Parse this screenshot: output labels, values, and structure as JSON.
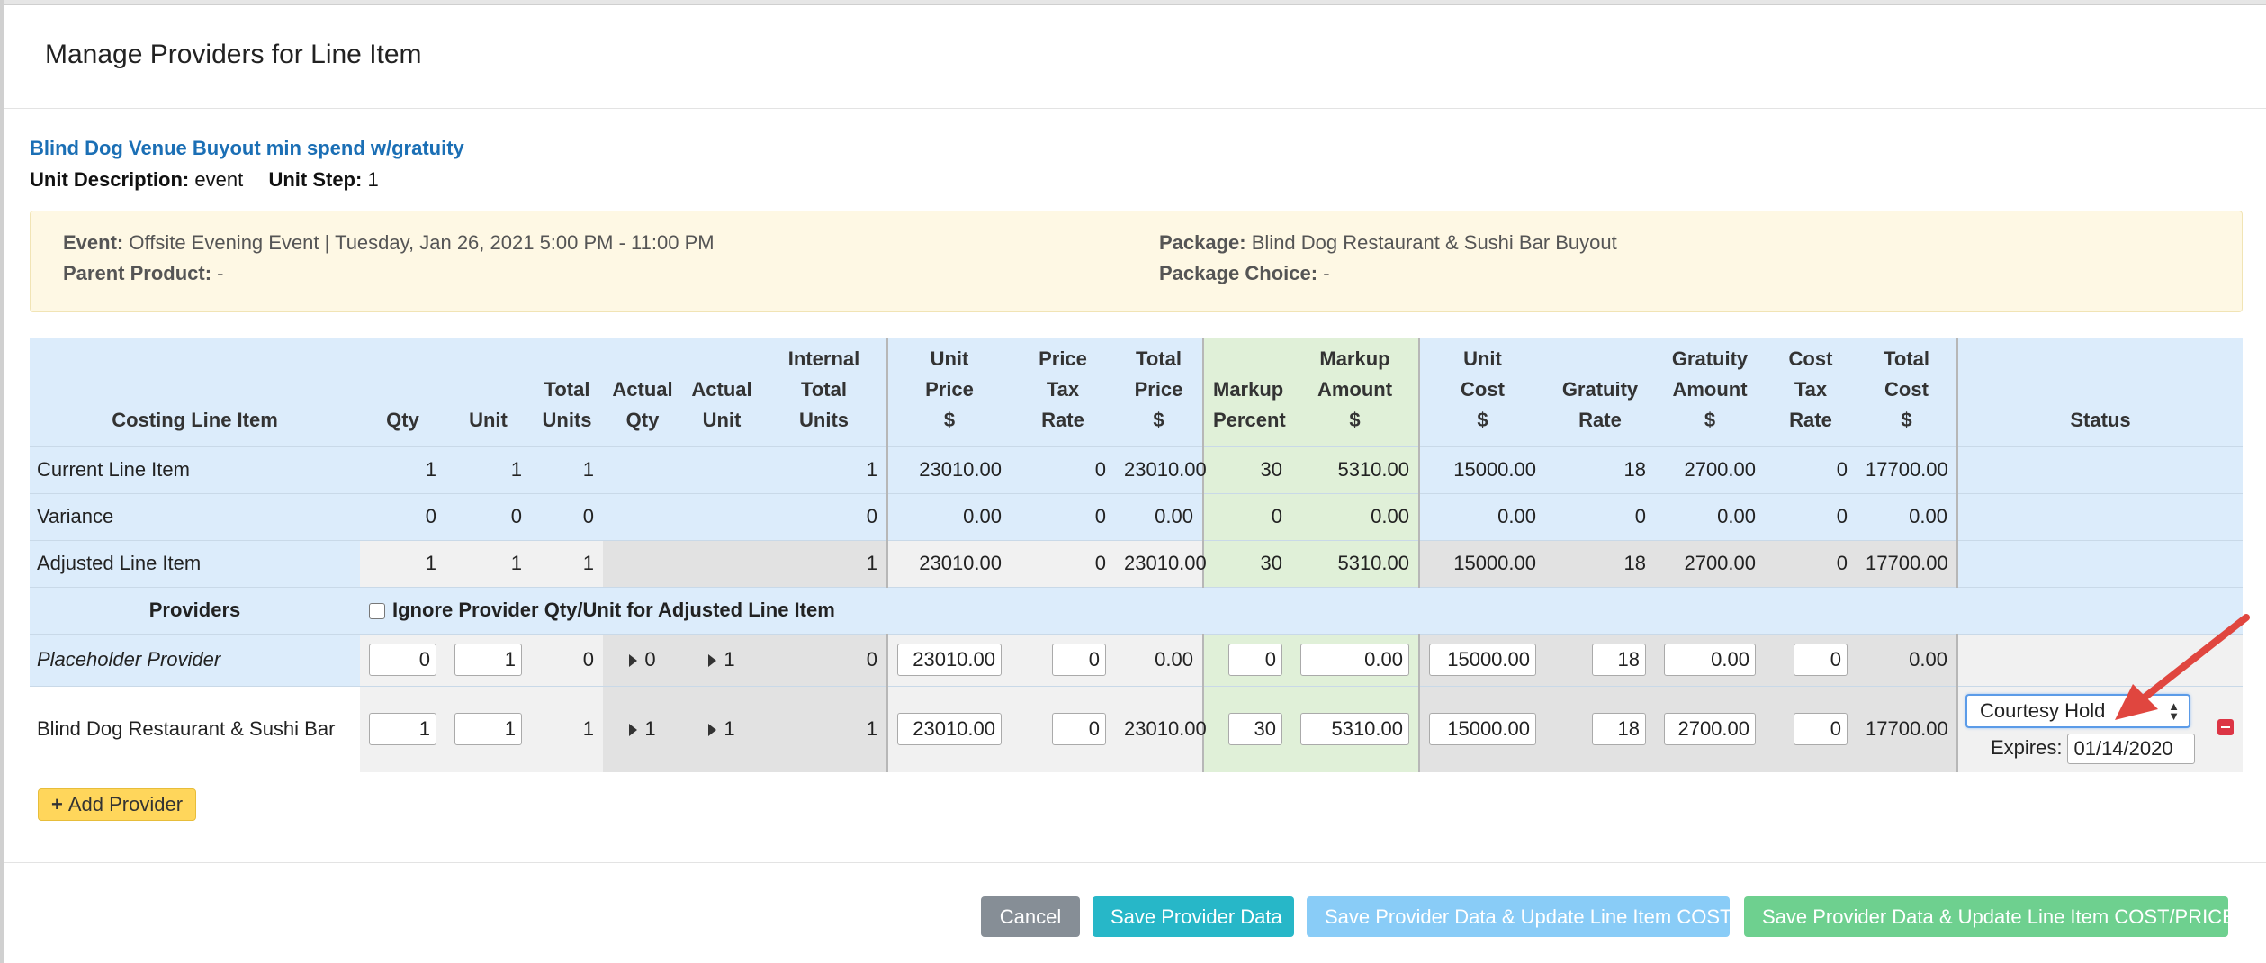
{
  "modal": {
    "title": "Manage Providers for Line Item"
  },
  "product": {
    "name": "Blind Dog Venue Buyout min spend w/gratuity",
    "unit_description_label": "Unit Description:",
    "unit_description": "event",
    "unit_step_label": "Unit Step:",
    "unit_step": "1"
  },
  "event_info": {
    "event_label": "Event:",
    "event": "Offsite Evening Event | Tuesday, Jan 26, 2021 5:00 PM - 11:00 PM",
    "parent_label": "Parent Product:",
    "parent": "-",
    "package_label": "Package:",
    "package": "Blind Dog Restaurant & Sushi Bar Buyout",
    "package_choice_label": "Package Choice:",
    "package_choice": "-"
  },
  "table": {
    "headers": {
      "costing_line_item": "Costing Line Item",
      "qty": "Qty",
      "unit": "Unit",
      "total_units_1": "Total",
      "total_units_2": "Units",
      "actual_qty_1": "Actual",
      "actual_qty_2": "Qty",
      "actual_unit_1": "Actual",
      "actual_unit_2": "Unit",
      "internal_1": "Internal",
      "internal_2": "Total",
      "internal_3": "Units",
      "unit_price_1": "Unit",
      "unit_price_2": "Price",
      "unit_price_3": "$",
      "price_tax_1": "Price Tax",
      "price_tax_2": "Rate",
      "total_price_1": "Total",
      "total_price_2": "Price",
      "total_price_3": "$",
      "markup_pct_1": "Markup",
      "markup_pct_2": "Percent",
      "markup_amt_1": "Markup",
      "markup_amt_2": "Amount",
      "markup_amt_3": "$",
      "unit_cost_1": "Unit",
      "unit_cost_2": "Cost",
      "unit_cost_3": "$",
      "gratuity_rate_1": "Gratuity",
      "gratuity_rate_2": "Rate",
      "gratuity_amt_1": "Gratuity",
      "gratuity_amt_2": "Amount",
      "gratuity_amt_3": "$",
      "cost_tax_1": "Cost Tax",
      "cost_tax_2": "Rate",
      "total_cost_1": "Total",
      "total_cost_2": "Cost",
      "total_cost_3": "$",
      "status": "Status"
    },
    "current": {
      "name": "Current Line Item",
      "qty": "1",
      "unit": "1",
      "total_units": "1",
      "internal": "1",
      "unit_price": "23010.00",
      "price_tax": "0",
      "total_price": "23010.00",
      "markup_pct": "30",
      "markup_amt": "5310.00",
      "unit_cost": "15000.00",
      "gratuity_rate": "18",
      "gratuity_amt": "2700.00",
      "cost_tax": "0",
      "total_cost": "17700.00"
    },
    "variance": {
      "name": "Variance",
      "qty": "0",
      "unit": "0",
      "total_units": "0",
      "internal": "0",
      "unit_price": "0.00",
      "price_tax": "0",
      "total_price": "0.00",
      "markup_pct": "0",
      "markup_amt": "0.00",
      "unit_cost": "0.00",
      "gratuity_rate": "0",
      "gratuity_amt": "0.00",
      "cost_tax": "0",
      "total_cost": "0.00"
    },
    "adjusted": {
      "name": "Adjusted Line Item",
      "qty": "1",
      "unit": "1",
      "total_units": "1",
      "internal": "1",
      "unit_price": "23010.00",
      "price_tax": "0",
      "total_price": "23010.00",
      "markup_pct": "30",
      "markup_amt": "5310.00",
      "unit_cost": "15000.00",
      "gratuity_rate": "18",
      "gratuity_amt": "2700.00",
      "cost_tax": "0",
      "total_cost": "17700.00"
    },
    "providers_label": "Providers",
    "ignore_label": "Ignore Provider Qty/Unit for Adjusted Line Item",
    "placeholder": {
      "name": "Placeholder Provider",
      "qty": "0",
      "unit": "1",
      "total_units": "0",
      "actual_qty": "0",
      "actual_unit": "1",
      "internal": "0",
      "unit_price": "23010.00",
      "price_tax": "0",
      "total_price": "0.00",
      "markup_pct": "0",
      "markup_amt": "0.00",
      "unit_cost": "15000.00",
      "gratuity_rate": "18",
      "gratuity_amt": "0.00",
      "cost_tax": "0",
      "total_cost": "0.00"
    },
    "blinddog": {
      "name": "Blind Dog Restaurant & Sushi Bar",
      "qty": "1",
      "unit": "1",
      "total_units": "1",
      "actual_qty": "1",
      "actual_unit": "1",
      "internal": "1",
      "unit_price": "23010.00",
      "price_tax": "0",
      "total_price": "23010.00",
      "markup_pct": "30",
      "markup_amt": "5310.00",
      "unit_cost": "15000.00",
      "gratuity_rate": "18",
      "gratuity_amt": "2700.00",
      "cost_tax": "0",
      "total_cost": "17700.00",
      "status": "Courtesy Hold",
      "expires_label": "Expires:",
      "expires": "01/14/2020"
    }
  },
  "add_provider_label": "Add Provider",
  "buttons": {
    "cancel": "Cancel",
    "save": "Save Provider Data",
    "save_cost": "Save Provider Data & Update Line Item COST",
    "save_cost_price": "Save Provider Data & Update Line Item COST/PRICE"
  },
  "colors": {
    "link_blue": "#1b6fb5",
    "table_blue": "#dcecfb",
    "markup_green": "#e0f0d8",
    "add_yellow": "#ffd65b",
    "save_teal": "#27b7c8",
    "cost_lightblue": "#89ccf7",
    "costprice_green": "#6ed08f",
    "cancel_gray": "#868e96",
    "arrow_red": "#e0463f"
  }
}
